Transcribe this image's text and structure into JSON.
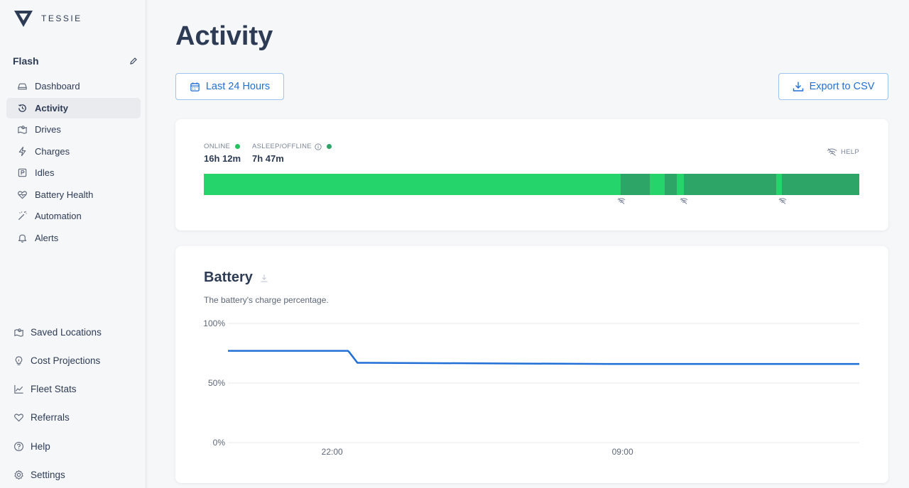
{
  "brand": {
    "name": "TESSIE"
  },
  "vehicle": {
    "name": "Flash"
  },
  "nav": [
    {
      "label": "Dashboard",
      "icon": "car-icon",
      "active": false
    },
    {
      "label": "Activity",
      "icon": "history-icon",
      "active": true
    },
    {
      "label": "Drives",
      "icon": "map-icon",
      "active": false
    },
    {
      "label": "Charges",
      "icon": "bolt-icon",
      "active": false
    },
    {
      "label": "Idles",
      "icon": "parking-icon",
      "active": false
    },
    {
      "label": "Battery Health",
      "icon": "heart-pulse-icon",
      "active": false
    },
    {
      "label": "Automation",
      "icon": "wand-icon",
      "active": false
    },
    {
      "label": "Alerts",
      "icon": "bell-icon",
      "active": false
    }
  ],
  "nav2": [
    {
      "label": "Saved Locations",
      "icon": "map-icon"
    },
    {
      "label": "Cost Projections",
      "icon": "lightbulb-icon"
    },
    {
      "label": "Fleet Stats",
      "icon": "trend-icon"
    },
    {
      "label": "Referrals",
      "icon": "heart-icon"
    },
    {
      "label": "Help",
      "icon": "question-icon"
    },
    {
      "label": "Settings",
      "icon": "gear-icon"
    }
  ],
  "page": {
    "title": "Activity"
  },
  "toolbar": {
    "range_label": "Last 24 Hours",
    "export_label": "Export to CSV"
  },
  "status": {
    "online_label": "ONLINE",
    "online_value": "16h 12m",
    "asleep_label": "ASLEEP/OFFLINE",
    "asleep_value": "7h 47m",
    "help_label": "HELP",
    "colors": {
      "online": "#25d46b",
      "asleep": "#2ca566"
    },
    "asleep_fractions": [
      [
        0.636,
        0.68
      ],
      [
        0.703,
        0.722
      ],
      [
        0.732,
        0.873
      ],
      [
        0.882,
        1.0
      ]
    ],
    "offline_markers": [
      0.637,
      0.732,
      0.883
    ]
  },
  "battery": {
    "title": "Battery",
    "subtitle": "The battery's charge percentage."
  },
  "chart_data": {
    "type": "line",
    "title": "Battery",
    "ylabel": "",
    "xlabel": "",
    "ylim": [
      0,
      100
    ],
    "yticks": [
      "100%",
      "50%",
      "0%"
    ],
    "xticks": [
      {
        "label": "22:00",
        "t": 0.165
      },
      {
        "label": "09:00",
        "t": 0.625
      }
    ],
    "color": "#1f6fd6",
    "series": [
      {
        "name": "",
        "t": [
          0.0,
          0.19,
          0.192,
          0.205,
          0.22,
          0.4,
          0.6,
          0.8,
          1.0
        ],
        "values": [
          77,
          77,
          76,
          67,
          67,
          66.5,
          66,
          66,
          66
        ]
      }
    ]
  }
}
